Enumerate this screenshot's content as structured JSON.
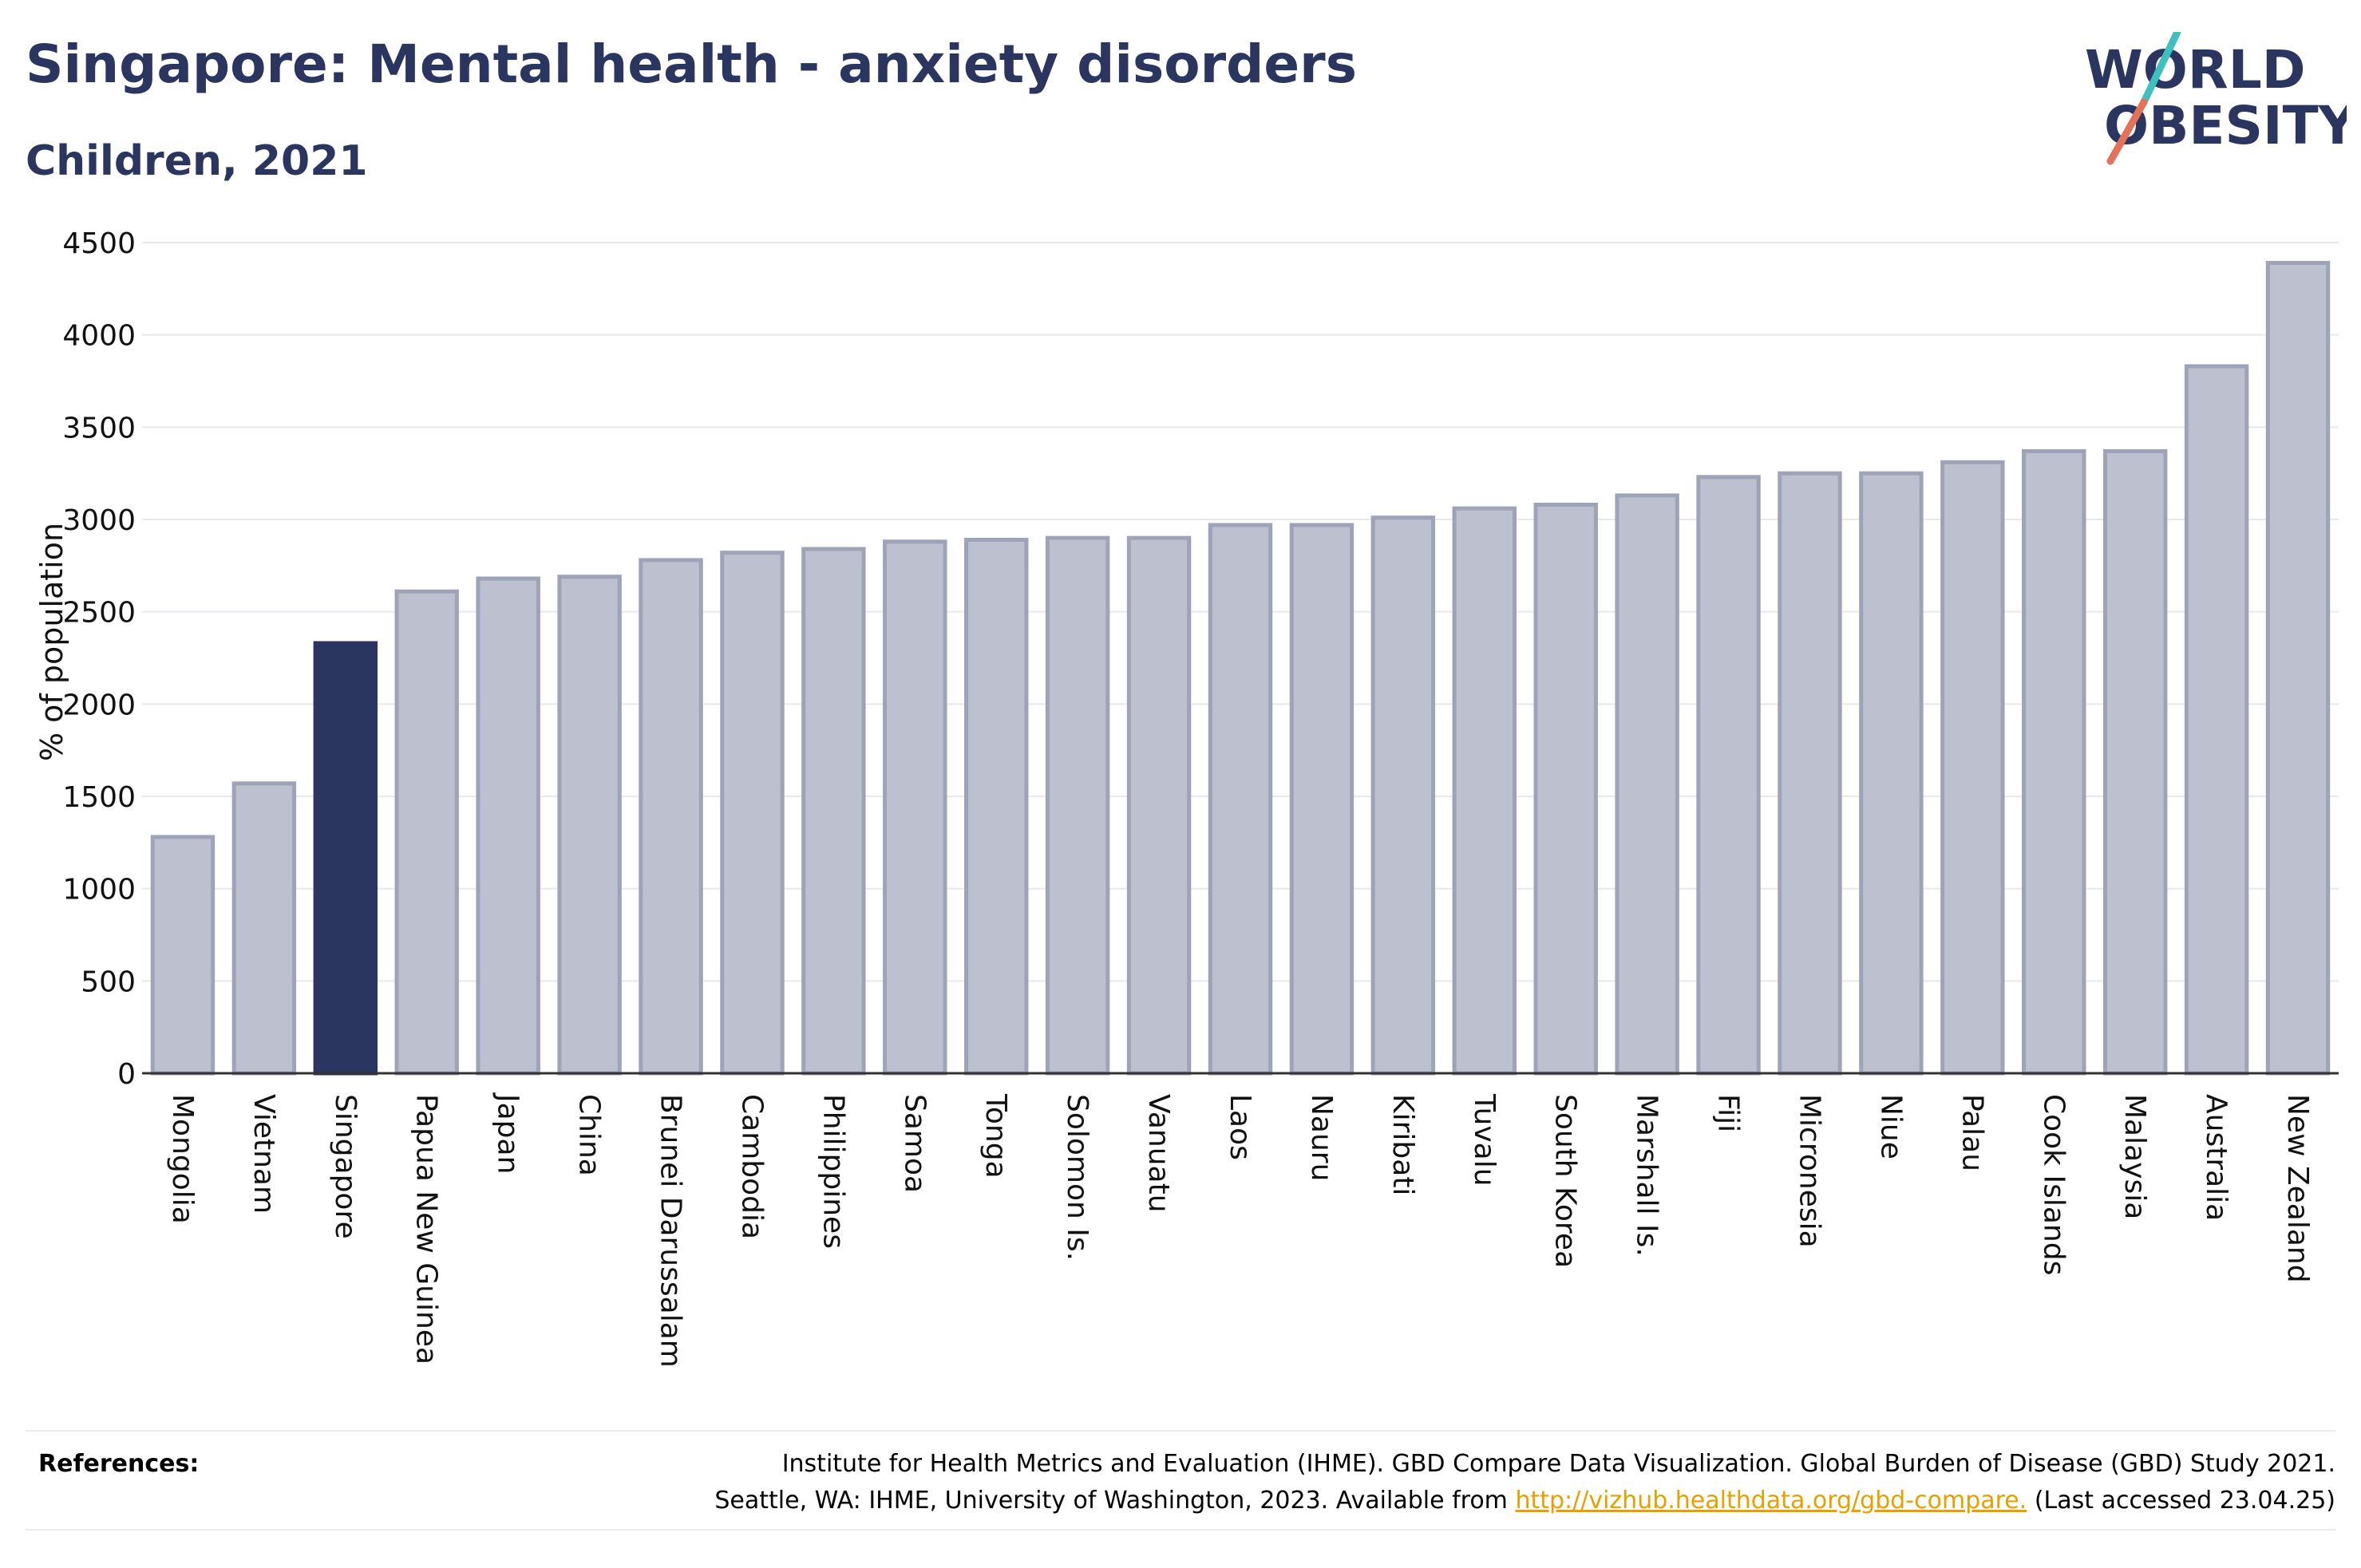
{
  "header": {
    "title": "Singapore: Mental health - anxiety disorders",
    "subtitle": "Children, 2021"
  },
  "logo": {
    "line1": "WORLD",
    "line2": "OBESITY",
    "text_color": "#2a3560",
    "slash_top_color": "#3fbfbf",
    "slash_bottom_color": "#e4725a"
  },
  "chart_data": {
    "type": "bar",
    "title": "",
    "xlabel": "",
    "ylabel": "% of population",
    "ylim": [
      0,
      4500
    ],
    "yticks": [
      0,
      500,
      1000,
      1500,
      2000,
      2500,
      3000,
      3500,
      4000,
      4500
    ],
    "grid": true,
    "highlight": "Singapore",
    "colors": {
      "bar": "#bcc0cf",
      "bar_border": "#9ea3b8",
      "highlight": "#2a3560",
      "grid": "#e8e8ee",
      "axis": "#333333"
    },
    "categories": [
      "Mongolia",
      "Vietnam",
      "Singapore",
      "Papua New Guinea",
      "Japan",
      "China",
      "Brunei Darussalam",
      "Cambodia",
      "Philippines",
      "Samoa",
      "Tonga",
      "Solomon Is.",
      "Vanuatu",
      "Laos",
      "Nauru",
      "Kiribati",
      "Tuvalu",
      "South Korea",
      "Marshall Is.",
      "Fiji",
      "Micronesia",
      "Niue",
      "Palau",
      "Cook Islands",
      "Malaysia",
      "Australia",
      "New Zealand"
    ],
    "values": [
      1280,
      1570,
      2330,
      2610,
      2680,
      2690,
      2780,
      2820,
      2840,
      2880,
      2890,
      2900,
      2900,
      2970,
      2970,
      3010,
      3060,
      3080,
      3130,
      3230,
      3250,
      3250,
      3310,
      3370,
      3370,
      3830,
      4390
    ]
  },
  "references": {
    "label": "References:",
    "line1": "Institute for Health Metrics and Evaluation (IHME). GBD Compare Data Visualization. Global Burden of Disease (GBD) Study 2021.",
    "line2_prefix": "Seattle, WA: IHME, University of Washington, 2023. Available from ",
    "link": "http://vizhub.healthdata.org/gbd-compare.",
    "line2_suffix": " (Last accessed 23.04.25)"
  }
}
